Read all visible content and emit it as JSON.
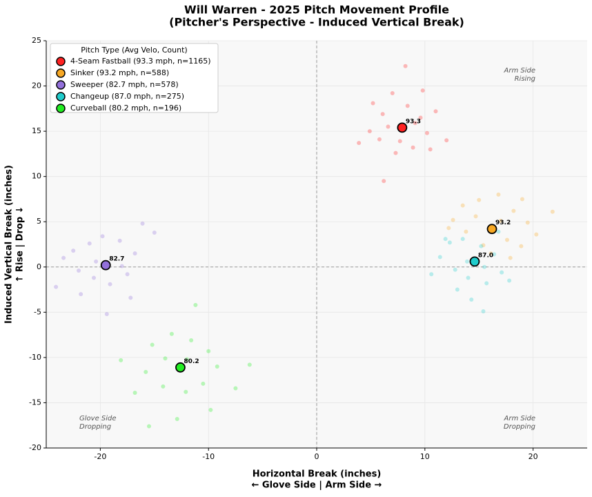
{
  "chart_data": {
    "type": "scatter",
    "title": [
      "Will Warren - 2025 Pitch Movement Profile",
      "(Pitcher's Perspective - Induced Vertical Break)"
    ],
    "x_label": [
      "Horizontal Break (inches)",
      "← Glove Side | Arm Side →"
    ],
    "y_label": [
      "Induced Vertical Break (inches)",
      "↑ Rise | Drop ↓"
    ],
    "xlim": [
      -25,
      25
    ],
    "ylim": [
      -20,
      25
    ],
    "xticks": [
      -20,
      -10,
      0,
      10,
      20
    ],
    "yticks": [
      -20,
      -15,
      -10,
      -5,
      0,
      5,
      10,
      15,
      20,
      25
    ],
    "grid": true,
    "legend_position": "upper-left",
    "legend_title": "Pitch Type (Avg Velo, Count)",
    "annotations": [
      {
        "lines": [
          "Arm Side",
          "Rising"
        ],
        "corner": "upper-right"
      },
      {
        "lines": [
          "Glove Side",
          "Dropping"
        ],
        "corner": "lower-left"
      },
      {
        "lines": [
          "Arm Side",
          "Dropping"
        ],
        "corner": "lower-right"
      }
    ],
    "series": [
      {
        "name": "4-Seam Fastball (93.3 mph, n=1165)",
        "color": "#ff2222",
        "avg_x": 7.9,
        "avg_y": 15.4,
        "avg_label": "93.3",
        "x": [
          5.2,
          6.1,
          7.0,
          8.4,
          9.6,
          10.2,
          8.9,
          7.3,
          5.8,
          6.6,
          9.1,
          11.0,
          4.9,
          7.7,
          10.5,
          8.2,
          6.2,
          3.9,
          12.0,
          9.8
        ],
        "values": [
          18.1,
          16.9,
          19.2,
          17.8,
          16.5,
          14.8,
          13.2,
          12.6,
          14.1,
          15.5,
          15.9,
          17.2,
          15.0,
          13.9,
          13.0,
          22.2,
          9.5,
          13.7,
          14.0,
          19.5
        ]
      },
      {
        "name": "Sinker (93.2 mph, n=588)",
        "color": "#f7a824",
        "avg_x": 16.2,
        "avg_y": 4.2,
        "avg_label": "93.2",
        "x": [
          13.5,
          15.0,
          16.8,
          18.2,
          19.5,
          17.6,
          15.4,
          13.8,
          12.6,
          14.7,
          17.0,
          18.9,
          20.3,
          21.8,
          16.1,
          19.0,
          12.2,
          17.9
        ],
        "values": [
          6.8,
          7.4,
          8.0,
          6.2,
          4.9,
          3.0,
          2.4,
          3.9,
          5.2,
          5.6,
          5.1,
          2.3,
          3.6,
          6.1,
          1.5,
          7.5,
          4.3,
          1.0
        ]
      },
      {
        "name": "Sweeper (82.7 mph, n=578)",
        "color": "#9370db",
        "avg_x": -19.5,
        "avg_y": 0.2,
        "avg_label": "82.7",
        "x": [
          -22.5,
          -21.0,
          -19.8,
          -18.2,
          -16.8,
          -17.5,
          -19.1,
          -20.6,
          -22.0,
          -23.4,
          -20.4,
          -18.0,
          -16.1,
          -15.0,
          -21.8,
          -19.4,
          -24.1,
          -17.2
        ],
        "values": [
          1.8,
          2.6,
          3.4,
          2.9,
          1.5,
          -0.8,
          -1.9,
          -1.2,
          -0.4,
          1.0,
          0.6,
          0.1,
          4.8,
          3.8,
          -3.0,
          -5.2,
          -2.2,
          -3.4
        ]
      },
      {
        "name": "Changeup (87.0 mph, n=275)",
        "color": "#20cccc",
        "avg_x": 14.6,
        "avg_y": 0.6,
        "avg_label": "87.0",
        "x": [
          12.3,
          13.5,
          15.2,
          16.4,
          17.1,
          15.7,
          14.0,
          12.8,
          11.4,
          13.9,
          15.5,
          16.8,
          10.6,
          14.3,
          15.4,
          17.8,
          13.0,
          11.9
        ],
        "values": [
          2.7,
          3.1,
          2.3,
          1.4,
          -0.6,
          -1.8,
          -1.2,
          -0.3,
          1.1,
          0.6,
          0.0,
          3.9,
          -0.8,
          -3.6,
          -4.9,
          -1.5,
          -2.5,
          3.1
        ]
      },
      {
        "name": "Curveball (80.2 mph, n=196)",
        "color": "#22ee22",
        "avg_x": -12.6,
        "avg_y": -11.1,
        "avg_label": "80.2",
        "x": [
          -15.2,
          -13.4,
          -11.6,
          -10.0,
          -9.2,
          -10.5,
          -12.1,
          -14.2,
          -15.8,
          -14.0,
          -12.0,
          -11.2,
          -16.8,
          -15.5,
          -12.9,
          -7.5,
          -6.2,
          -18.1,
          -9.8
        ],
        "values": [
          -8.6,
          -7.4,
          -8.1,
          -9.3,
          -11.0,
          -12.9,
          -13.8,
          -13.2,
          -11.6,
          -10.1,
          -10.2,
          -4.2,
          -13.9,
          -17.6,
          -16.8,
          -13.4,
          -10.8,
          -10.3,
          -15.8
        ]
      }
    ]
  }
}
